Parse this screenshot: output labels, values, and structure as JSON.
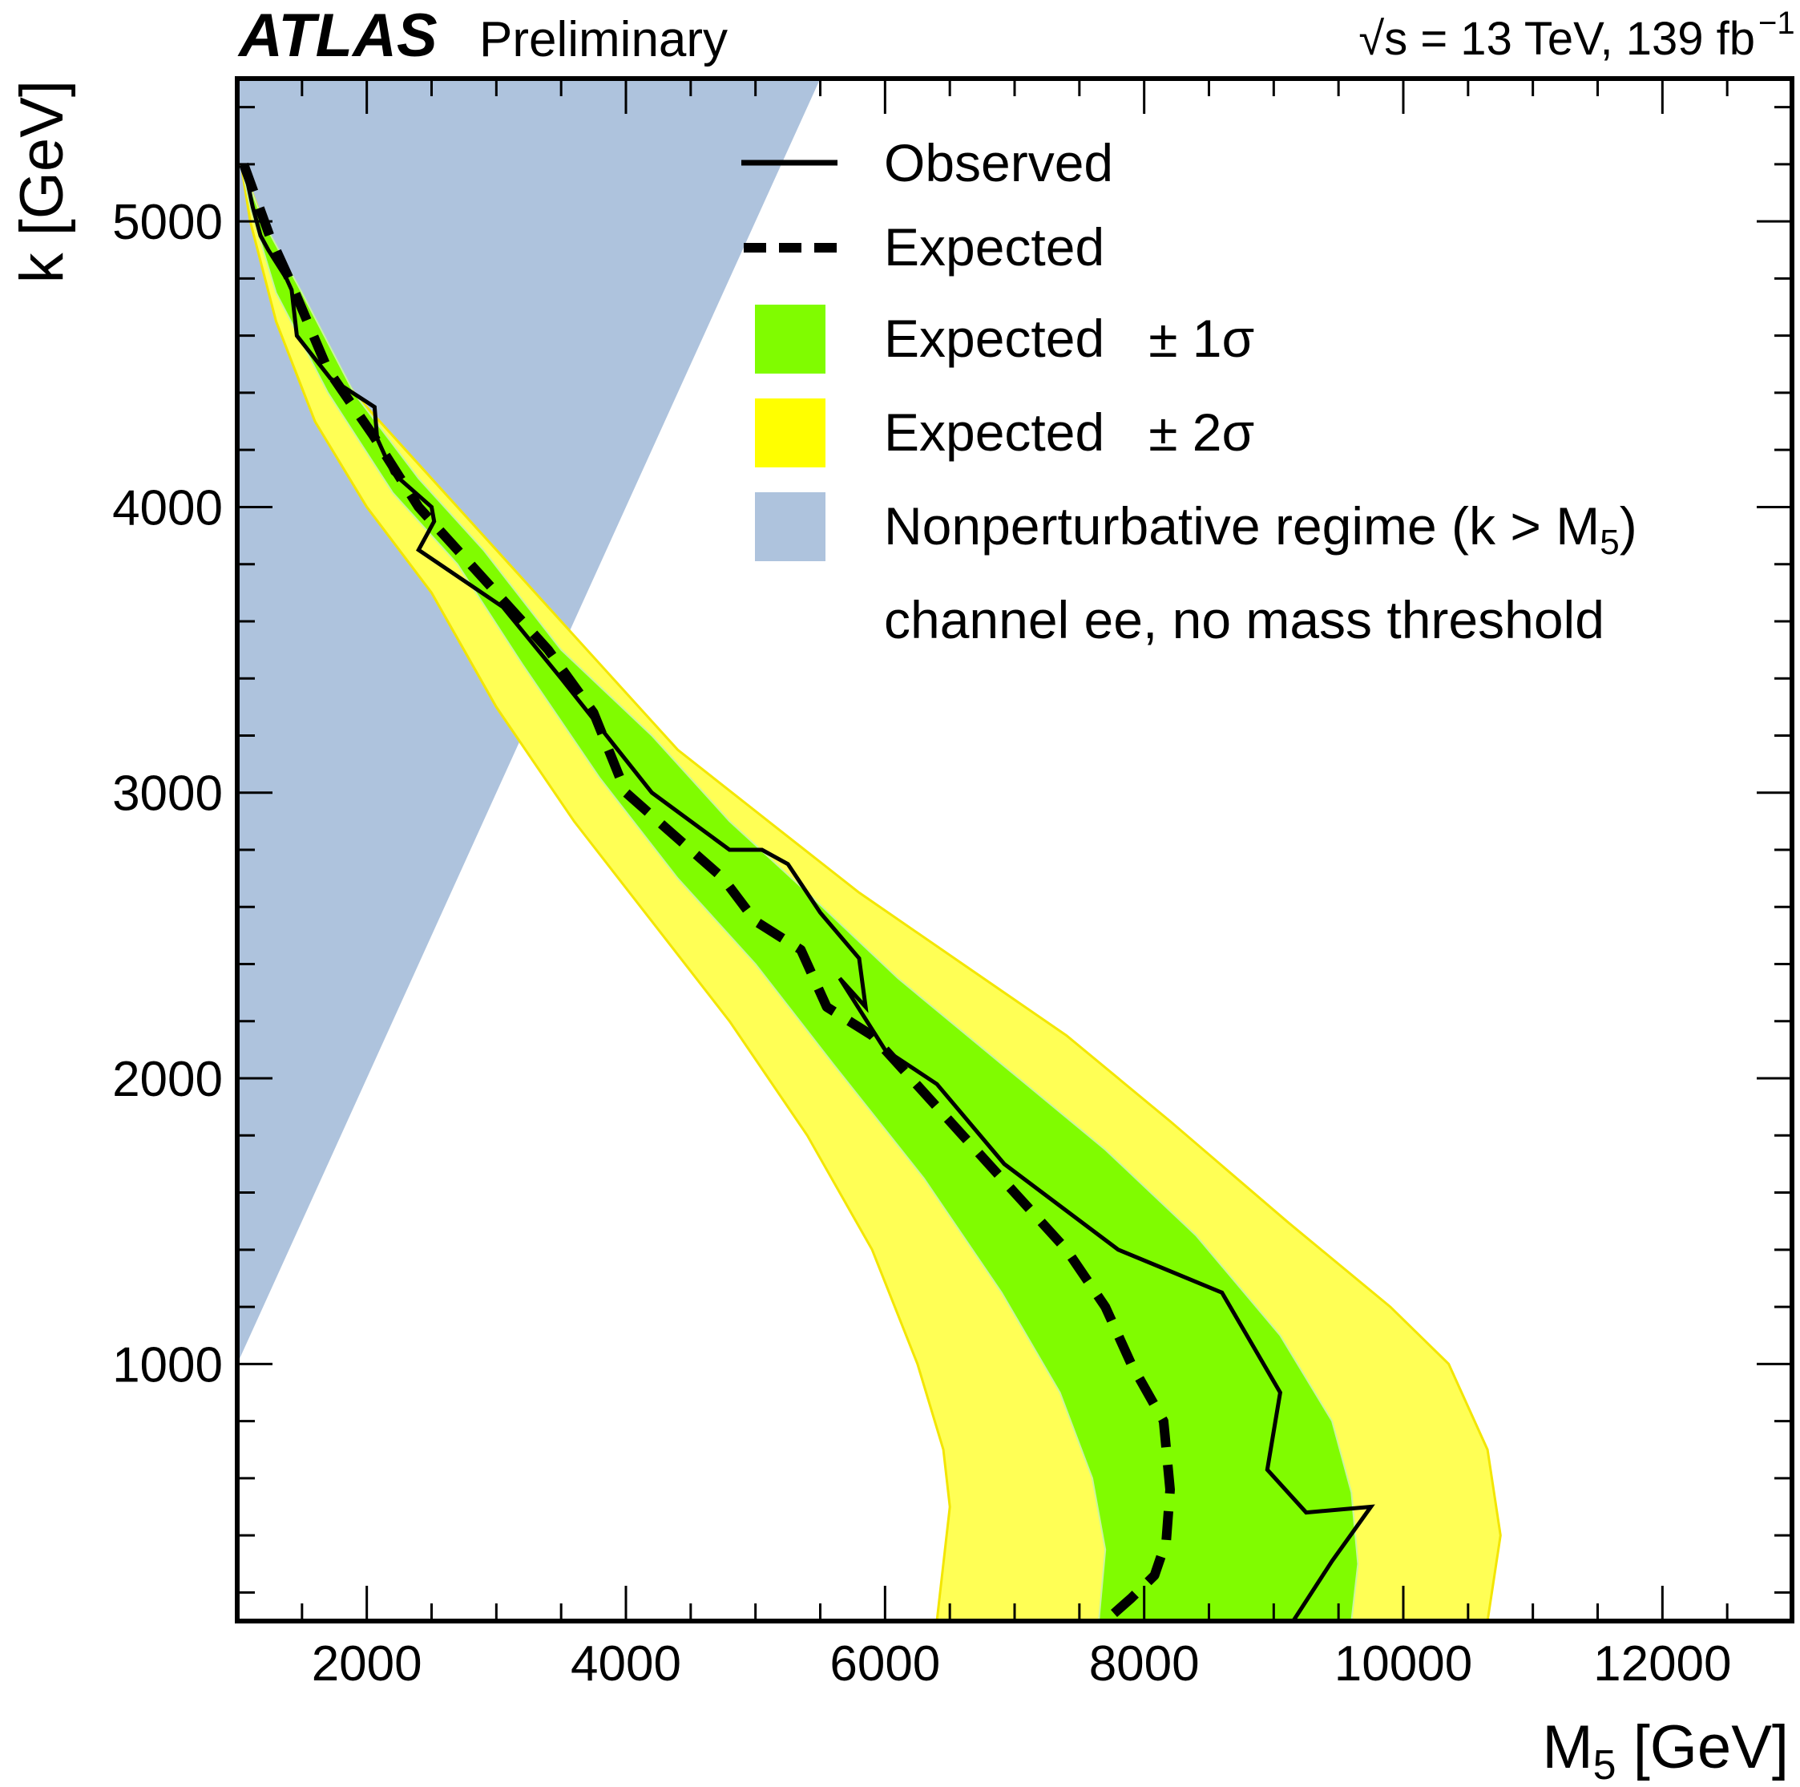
{
  "header": {
    "experiment": "ATLAS",
    "status": "Preliminary",
    "energy_label": "√s = 13 TeV, 139 fb",
    "energy_superscript": "−1"
  },
  "colors": {
    "observed": "#000000",
    "expected": "#000000",
    "band1": "#80fc00",
    "band2": "#ffff55",
    "nonpert": "#aec3dd",
    "frame": "#000000"
  },
  "chart_data": {
    "type": "line",
    "title": "",
    "xlabel_main": "M",
    "xlabel_sub": "5",
    "xlabel_unit": " [GeV]",
    "ylabel": "k [GeV]",
    "xlim": [
      1000,
      13000
    ],
    "ylim": [
      100,
      5500
    ],
    "x_ticks": [
      2000,
      4000,
      6000,
      8000,
      10000,
      12000
    ],
    "x_tick_labels": [
      "2000",
      "4000",
      "6000",
      "8000",
      "10000",
      "12000"
    ],
    "y_ticks": [
      1000,
      2000,
      3000,
      4000,
      5000
    ],
    "y_tick_labels": [
      "1000",
      "2000",
      "3000",
      "4000",
      "5000"
    ],
    "legend": {
      "placement": "top-right",
      "entries": [
        {
          "key": "observed",
          "label": "Observed"
        },
        {
          "key": "expected",
          "label": "Expected"
        },
        {
          "key": "band1",
          "label": "Expected   ± 1σ"
        },
        {
          "key": "band2",
          "label": "Expected   ± 2σ"
        },
        {
          "key": "nonpert",
          "label": "Nonperturbative regime (k > M",
          "sub": "5",
          "tail": ")"
        }
      ],
      "note": "channel ee, no mass threshold"
    },
    "series": [
      {
        "name": "Observed",
        "style": "solid",
        "x": [
          1050,
          1120,
          1180,
          1240,
          1380,
          1420,
          1460,
          1720,
          2060,
          2080,
          2200,
          2500,
          2520,
          2400,
          3050,
          3500,
          3850,
          4200,
          4800,
          5050,
          5250,
          5500,
          5800,
          5850,
          5650,
          6000,
          6400,
          6920,
          7800,
          8600,
          9050,
          8950,
          9250,
          9750,
          9450,
          9150
        ],
        "y": [
          5200,
          5050,
          4950,
          4900,
          4800,
          4760,
          4600,
          4450,
          4350,
          4240,
          4120,
          4000,
          3950,
          3850,
          3650,
          3400,
          3200,
          3000,
          2800,
          2800,
          2750,
          2580,
          2420,
          2250,
          2350,
          2100,
          1980,
          1700,
          1400,
          1250,
          900,
          630,
          480,
          500,
          310,
          100
        ]
      },
      {
        "name": "Expected",
        "style": "dashed",
        "x": [
          1050,
          1250,
          1400,
          1700,
          2050,
          2400,
          2700,
          3000,
          3400,
          3750,
          4000,
          4250,
          4500,
          4750,
          5000,
          5350,
          5550,
          5900,
          6200,
          6600,
          7000,
          7400,
          7700,
          7900,
          8150,
          8200,
          8170,
          8080,
          7900,
          7700
        ],
        "y": [
          5200,
          4950,
          4800,
          4480,
          4250,
          4000,
          3850,
          3700,
          3500,
          3280,
          3000,
          2900,
          2800,
          2700,
          2550,
          2450,
          2250,
          2150,
          2000,
          1800,
          1600,
          1400,
          1200,
          1000,
          800,
          560,
          380,
          260,
          180,
          100
        ]
      }
    ],
    "bands": [
      {
        "name": "Expected ± 2σ",
        "upper_x": [
          1030,
          1200,
          1500,
          1900,
          2400,
          3000,
          3700,
          4400,
          5100,
          5800,
          6600,
          7400,
          8200,
          9100,
          9900,
          10350,
          10650,
          10750,
          10700,
          10650
        ],
        "upper_y": [
          5200,
          5000,
          4700,
          4400,
          4150,
          3850,
          3500,
          3150,
          2900,
          2650,
          2400,
          2150,
          1850,
          1500,
          1200,
          1000,
          700,
          400,
          250,
          100
        ],
        "lower_x": [
          1030,
          1100,
          1300,
          1600,
          2000,
          2500,
          3000,
          3600,
          4200,
          4800,
          5400,
          5900,
          6250,
          6450,
          6500,
          6450,
          6400
        ],
        "lower_y": [
          5200,
          5000,
          4650,
          4300,
          4000,
          3700,
          3300,
          2900,
          2550,
          2200,
          1800,
          1400,
          1000,
          700,
          500,
          300,
          100
        ]
      },
      {
        "name": "Expected ± 1σ",
        "upper_x": [
          1030,
          1200,
          1500,
          1900,
          2400,
          2900,
          3500,
          4200,
          4800,
          5400,
          6100,
          6900,
          7700,
          8400,
          9050,
          9450,
          9600,
          9650,
          9600
        ],
        "upper_y": [
          5200,
          5000,
          4750,
          4400,
          4100,
          3850,
          3500,
          3200,
          2900,
          2650,
          2350,
          2050,
          1750,
          1450,
          1100,
          800,
          550,
          300,
          100
        ],
        "lower_x": [
          1030,
          1100,
          1300,
          1700,
          2200,
          2700,
          3200,
          3800,
          4400,
          5000,
          5600,
          6300,
          6900,
          7350,
          7600,
          7700,
          7650
        ],
        "lower_y": [
          5200,
          5050,
          4750,
          4400,
          4050,
          3800,
          3450,
          3050,
          2700,
          2400,
          2050,
          1650,
          1250,
          900,
          600,
          350,
          100
        ]
      }
    ],
    "nonperturbative_region": {
      "description_from_legend": "k > M5",
      "x": [
        1000,
        1000,
        5500,
        1000
      ],
      "y": [
        1000,
        5500,
        5500,
        1000
      ]
    }
  }
}
